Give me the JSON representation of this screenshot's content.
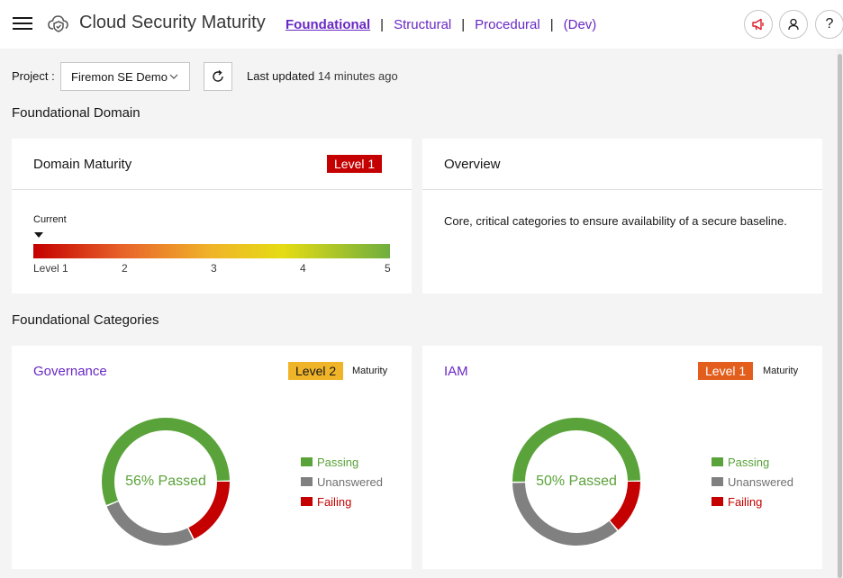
{
  "header": {
    "title": "Cloud Security Maturity",
    "nav": [
      {
        "label": "Foundational",
        "active": true
      },
      {
        "label": "Structural",
        "active": false
      },
      {
        "label": "Procedural",
        "active": false
      },
      {
        "label": "(Dev)",
        "active": false
      }
    ],
    "separator": "|",
    "help_label": "?"
  },
  "toolbar": {
    "project_label": "Project :",
    "project_value": "Firemon SE Demo",
    "last_updated_prefix": "Last updated",
    "last_updated_relative": "14 minutes ago"
  },
  "domain": {
    "section_title": "Foundational Domain",
    "maturity_card": {
      "title": "Domain Maturity",
      "badge": "Level 1",
      "current_label": "Current",
      "current_level": 1,
      "scale": [
        "Level 1",
        "2",
        "3",
        "4",
        "5"
      ]
    },
    "overview_card": {
      "title": "Overview",
      "text": "Core, critical categories to ensure availability of a secure baseline."
    }
  },
  "categories": {
    "section_title": "Foundational Categories",
    "items": [
      {
        "name": "Governance",
        "badge": "Level 2",
        "badge_color": "#f0b429",
        "maturity_label": "Maturity",
        "center_label": "56% Passed",
        "passing_pct": 56,
        "unanswered_pct": 26,
        "failing_pct": 18
      },
      {
        "name": "IAM",
        "badge": "Level 1",
        "badge_color": "#e35d1c",
        "maturity_label": "Maturity",
        "center_label": "50% Passed",
        "passing_pct": 50,
        "unanswered_pct": 36,
        "failing_pct": 14
      }
    ],
    "legend": [
      {
        "label": "Passing",
        "color": "#5aa33a"
      },
      {
        "label": "Unanswered",
        "color": "#808080"
      },
      {
        "label": "Failing",
        "color": "#c40000"
      }
    ]
  }
}
